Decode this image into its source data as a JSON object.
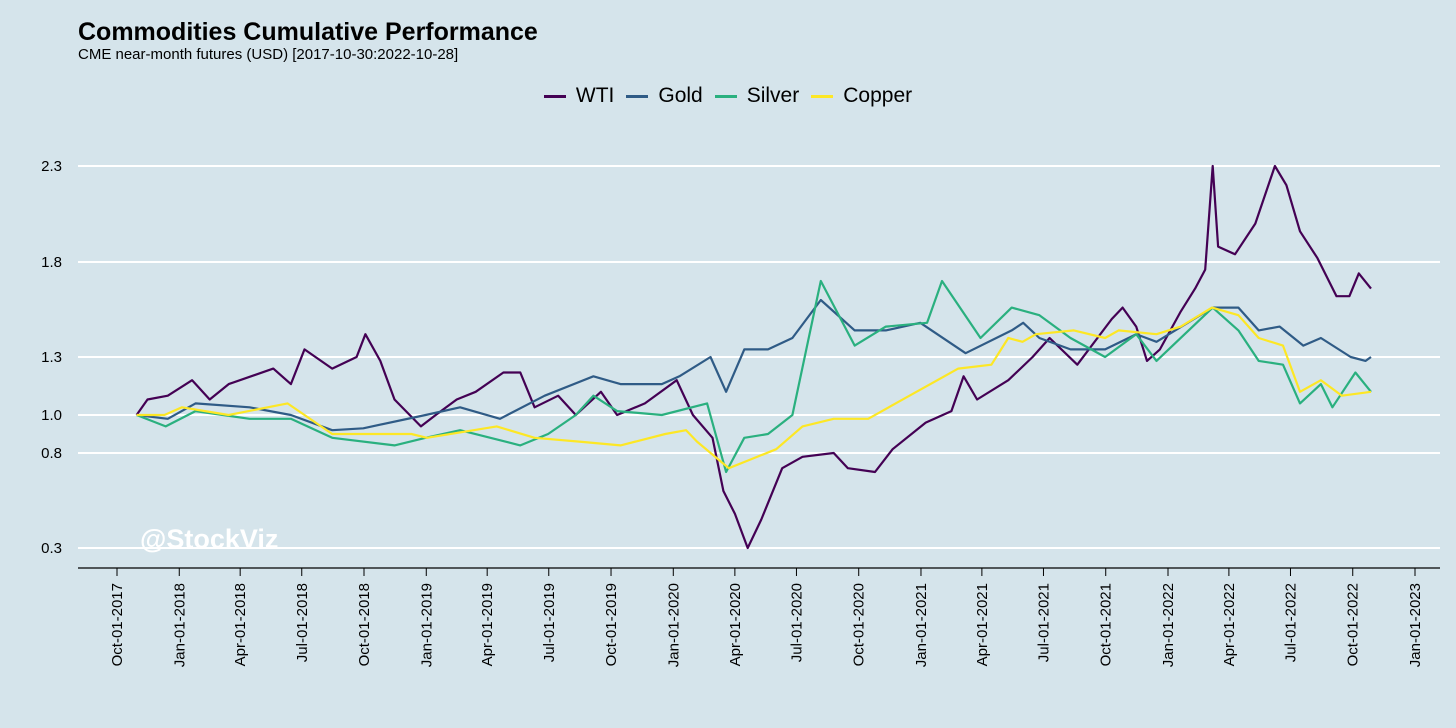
{
  "title": "Commodities Cumulative Performance",
  "subtitle": "CME near-month futures (USD) [2017-10-30:2022-10-28]",
  "watermark": "@StockViz",
  "chart_data": {
    "type": "line",
    "title": "Commodities Cumulative Performance",
    "subtitle": "CME near-month futures (USD) [2017-10-30:2022-10-28]",
    "xlabel": "",
    "ylabel": "",
    "legend_position": "top",
    "grid": "horizontal",
    "xlim": [
      "2017-10-01",
      "2023-01-01"
    ],
    "y_ticks": [
      0.3,
      0.8,
      1.0,
      1.3,
      1.8,
      2.3
    ],
    "y_tick_labels": [
      "0.3",
      "0.8",
      "1.0",
      "1.3",
      "1.8",
      "2.3"
    ],
    "x_ticks": [
      "2017-10-01",
      "2018-01-01",
      "2018-04-01",
      "2018-07-01",
      "2018-10-01",
      "2019-01-01",
      "2019-04-01",
      "2019-07-01",
      "2019-10-01",
      "2020-01-01",
      "2020-04-01",
      "2020-07-01",
      "2020-10-01",
      "2021-01-01",
      "2021-04-01",
      "2021-07-01",
      "2021-10-01",
      "2022-01-01",
      "2022-04-01",
      "2022-07-01",
      "2022-10-01",
      "2023-01-01"
    ],
    "x_tick_labels": [
      "Oct-01-2017",
      "Jan-01-2018",
      "Apr-01-2018",
      "Jul-01-2018",
      "Oct-01-2018",
      "Jan-01-2019",
      "Apr-01-2019",
      "Jul-01-2019",
      "Oct-01-2019",
      "Jan-01-2020",
      "Apr-01-2020",
      "Jul-01-2020",
      "Oct-01-2020",
      "Jan-01-2021",
      "Apr-01-2021",
      "Jul-01-2021",
      "Oct-01-2021",
      "Jan-01-2022",
      "Apr-01-2022",
      "Jul-01-2022",
      "Oct-01-2022",
      "Jan-01-2023"
    ],
    "series": [
      {
        "name": "WTI",
        "color": "#440154",
        "points": [
          [
            "2017-10-30",
            1.0
          ],
          [
            "2017-11-15",
            1.08
          ],
          [
            "2017-12-15",
            1.1
          ],
          [
            "2018-01-20",
            1.18
          ],
          [
            "2018-02-15",
            1.08
          ],
          [
            "2018-03-15",
            1.16
          ],
          [
            "2018-05-20",
            1.24
          ],
          [
            "2018-06-15",
            1.16
          ],
          [
            "2018-07-05",
            1.34
          ],
          [
            "2018-08-15",
            1.24
          ],
          [
            "2018-09-20",
            1.3
          ],
          [
            "2018-10-03",
            1.42
          ],
          [
            "2018-10-25",
            1.28
          ],
          [
            "2018-11-15",
            1.08
          ],
          [
            "2018-12-24",
            0.94
          ],
          [
            "2019-01-15",
            1.0
          ],
          [
            "2019-02-15,",
            1.08
          ],
          [
            "2019-03-15",
            1.12
          ],
          [
            "2019-04-25",
            1.22
          ],
          [
            "2019-05-20",
            1.22
          ],
          [
            "2019-06-10",
            1.04
          ],
          [
            "2019-07-15",
            1.1
          ],
          [
            "2019-08-10",
            1.0
          ],
          [
            "2019-09-16",
            1.12
          ],
          [
            "2019-10-10",
            1.0
          ],
          [
            "2019-11-20",
            1.06
          ],
          [
            "2020-01-06",
            1.18
          ],
          [
            "2020-01-30",
            1.0
          ],
          [
            "2020-02-28",
            0.88
          ],
          [
            "2020-03-15",
            0.6
          ],
          [
            "2020-04-01",
            0.48
          ],
          [
            "2020-04-20",
            0.3
          ],
          [
            "2020-05-10",
            0.45
          ],
          [
            "2020-06-10",
            0.72
          ],
          [
            "2020-07-10",
            0.78
          ],
          [
            "2020-08-25",
            0.8
          ],
          [
            "2020-09-15",
            0.72
          ],
          [
            "2020-10-25",
            0.7
          ],
          [
            "2020-11-20",
            0.82
          ],
          [
            "2021-01-08",
            0.96
          ],
          [
            "2021-02-15",
            1.02
          ],
          [
            "2021-03-05",
            1.2
          ],
          [
            "2021-03-25",
            1.08
          ],
          [
            "2021-05-10",
            1.18
          ],
          [
            "2021-06-15",
            1.3
          ],
          [
            "2021-07-10",
            1.4
          ],
          [
            "2021-08-20",
            1.26
          ],
          [
            "2021-10-10",
            1.5
          ],
          [
            "2021-10-26",
            1.56
          ],
          [
            "2021-11-15",
            1.46
          ],
          [
            "2021-12-01",
            1.28
          ],
          [
            "2021-12-20",
            1.34
          ],
          [
            "2022-01-20",
            1.54
          ],
          [
            "2022-02-10",
            1.66
          ],
          [
            "2022-02-25",
            1.76
          ],
          [
            "2022-03-08",
            2.3
          ],
          [
            "2022-03-16",
            1.88
          ],
          [
            "2022-04-10",
            1.84
          ],
          [
            "2022-05-10",
            2.0
          ],
          [
            "2022-06-08",
            2.3
          ],
          [
            "2022-06-25",
            2.2
          ],
          [
            "2022-07-15",
            1.96
          ],
          [
            "2022-08-10",
            1.82
          ],
          [
            "2022-09-07",
            1.62
          ],
          [
            "2022-09-26",
            1.62
          ],
          [
            "2022-10-10",
            1.74
          ],
          [
            "2022-10-28",
            1.66
          ]
        ]
      },
      {
        "name": "Gold",
        "color": "#2f5b86",
        "points": [
          [
            "2017-10-30",
            1.0
          ],
          [
            "2017-12-15",
            0.98
          ],
          [
            "2018-01-25",
            1.06
          ],
          [
            "2018-04-15",
            1.04
          ],
          [
            "2018-06-15",
            1.0
          ],
          [
            "2018-08-15",
            0.92
          ],
          [
            "2018-09-30",
            0.93
          ],
          [
            "2018-12-31",
            1.0
          ],
          [
            "2019-02-20",
            1.04
          ],
          [
            "2019-04-20",
            0.98
          ],
          [
            "2019-06-25",
            1.1
          ],
          [
            "2019-09-05",
            1.2
          ],
          [
            "2019-10-15",
            1.16
          ],
          [
            "2019-12-15",
            1.16
          ],
          [
            "2020-01-10",
            1.2
          ],
          [
            "2020-02-25",
            1.3
          ],
          [
            "2020-03-19",
            1.12
          ],
          [
            "2020-04-15",
            1.34
          ],
          [
            "2020-05-20",
            1.34
          ],
          [
            "2020-06-25",
            1.4
          ],
          [
            "2020-08-06",
            1.6
          ],
          [
            "2020-09-25",
            1.44
          ],
          [
            "2020-11-10",
            1.44
          ],
          [
            "2020-12-31",
            1.48
          ],
          [
            "2021-03-08",
            1.32
          ],
          [
            "2021-05-15",
            1.44
          ],
          [
            "2021-06-01",
            1.48
          ],
          [
            "2021-06-25",
            1.4
          ],
          [
            "2021-08-10",
            1.34
          ],
          [
            "2021-09-30",
            1.34
          ],
          [
            "2021-11-15",
            1.42
          ],
          [
            "2021-12-15",
            1.38
          ],
          [
            "2022-03-08",
            1.56
          ],
          [
            "2022-04-15",
            1.56
          ],
          [
            "2022-05-15",
            1.44
          ],
          [
            "2022-06-15",
            1.46
          ],
          [
            "2022-07-20",
            1.36
          ],
          [
            "2022-08-15",
            1.4
          ],
          [
            "2022-09-28",
            1.3
          ],
          [
            "2022-10-20",
            1.28
          ],
          [
            "2022-10-28",
            1.3
          ]
        ]
      },
      {
        "name": "Silver",
        "color": "#2ab07f",
        "points": [
          [
            "2017-10-30",
            1.0
          ],
          [
            "2017-12-12",
            0.94
          ],
          [
            "2018-01-25",
            1.02
          ],
          [
            "2018-04-15",
            0.98
          ],
          [
            "2018-06-15",
            0.98
          ],
          [
            "2018-08-15",
            0.88
          ],
          [
            "2018-11-15",
            0.84
          ],
          [
            "2018-12-31",
            0.88
          ],
          [
            "2019-02-20",
            0.92
          ],
          [
            "2019-05-20",
            0.84
          ],
          [
            "2019-06-30",
            0.9
          ],
          [
            "2019-08-10",
            1.0
          ],
          [
            "2019-09-05",
            1.1
          ],
          [
            "2019-10-10",
            1.02
          ],
          [
            "2019-12-15",
            1.0
          ],
          [
            "2020-02-20",
            1.06
          ],
          [
            "2020-03-19",
            0.7
          ],
          [
            "2020-04-15",
            0.88
          ],
          [
            "2020-05-20",
            0.9
          ],
          [
            "2020-06-25",
            1.0
          ],
          [
            "2020-08-06",
            1.7
          ],
          [
            "2020-09-25",
            1.36
          ],
          [
            "2020-11-10",
            1.46
          ],
          [
            "2021-01-10",
            1.48
          ],
          [
            "2021-02-01",
            1.7
          ],
          [
            "2021-03-30",
            1.4
          ],
          [
            "2021-05-15",
            1.56
          ],
          [
            "2021-06-25",
            1.52
          ],
          [
            "2021-08-10",
            1.4
          ],
          [
            "2021-09-30",
            1.3
          ],
          [
            "2021-11-15",
            1.42
          ],
          [
            "2021-12-15",
            1.28
          ],
          [
            "2022-03-08",
            1.56
          ],
          [
            "2022-04-15",
            1.44
          ],
          [
            "2022-05-15",
            1.28
          ],
          [
            "2022-06-20",
            1.26
          ],
          [
            "2022-07-15",
            1.06
          ],
          [
            "2022-08-15",
            1.16
          ],
          [
            "2022-09-01",
            1.04
          ],
          [
            "2022-10-05",
            1.22
          ],
          [
            "2022-10-28",
            1.12
          ]
        ]
      },
      {
        "name": "Copper",
        "color": "#fde725",
        "points": [
          [
            "2017-10-30",
            1.0
          ],
          [
            "2017-12-10",
            1.0
          ],
          [
            "2018-01-05",
            1.04
          ],
          [
            "2018-03-15",
            1.0
          ],
          [
            "2018-06-10",
            1.06
          ],
          [
            "2018-07-05",
            1.0
          ],
          [
            "2018-08-15",
            0.9
          ],
          [
            "2018-12-10",
            0.9
          ],
          [
            "2019-01-02",
            0.88
          ],
          [
            "2019-04-15",
            0.94
          ],
          [
            "2019-06-10",
            0.88
          ],
          [
            "2019-08-15",
            0.86
          ],
          [
            "2019-10-15",
            0.84
          ],
          [
            "2019-12-20",
            0.9
          ],
          [
            "2020-01-20",
            0.92
          ],
          [
            "2020-02-05",
            0.86
          ],
          [
            "2020-03-23",
            0.72
          ],
          [
            "2020-04-20",
            0.76
          ],
          [
            "2020-06-01",
            0.82
          ],
          [
            "2020-07-10",
            0.94
          ],
          [
            "2020-08-25",
            0.98
          ],
          [
            "2020-10-15",
            0.98
          ],
          [
            "2020-12-15",
            1.1
          ],
          [
            "2021-02-25",
            1.24
          ],
          [
            "2021-04-15",
            1.26
          ],
          [
            "2021-05-10",
            1.4
          ],
          [
            "2021-05-31",
            1.38
          ],
          [
            "2021-06-20",
            1.42
          ],
          [
            "2021-08-15",
            1.44
          ],
          [
            "2021-09-30",
            1.4
          ],
          [
            "2021-10-20",
            1.44
          ],
          [
            "2021-12-15",
            1.42
          ],
          [
            "2022-01-20",
            1.46
          ],
          [
            "2022-03-07",
            1.56
          ],
          [
            "2022-04-15",
            1.52
          ],
          [
            "2022-05-15",
            1.4
          ],
          [
            "2022-06-20",
            1.36
          ],
          [
            "2022-07-15",
            1.12
          ],
          [
            "2022-08-15",
            1.18
          ],
          [
            "2022-09-15",
            1.1
          ],
          [
            "2022-10-28",
            1.12
          ]
        ]
      }
    ]
  }
}
